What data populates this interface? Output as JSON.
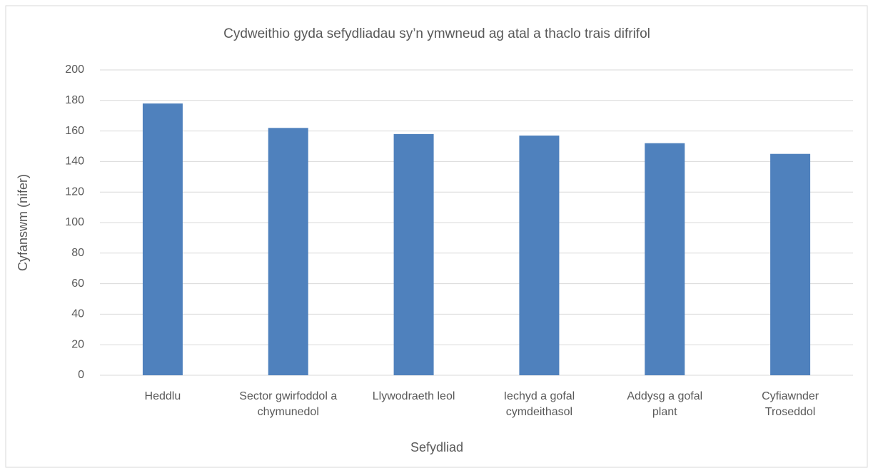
{
  "chart_data": {
    "type": "bar",
    "title": "Cydweithio gyda sefydliadau sy’n ymwneud ag atal a thaclo trais difrifol",
    "x_label": "Sefydliad",
    "y_label": "Cyfanswm (nifer)",
    "categories": [
      "Heddlu",
      "Sector gwirfoddol a chymunedol",
      "Llywodraeth leol",
      "Iechyd a gofal cymdeithasol",
      "Addysg a gofal plant",
      "Cyfiawnder Troseddol"
    ],
    "values": [
      178,
      162,
      158,
      157,
      152,
      145
    ],
    "color": "#4f81bd",
    "ylim": [
      0,
      200
    ],
    "yticks": [
      0,
      20,
      40,
      60,
      80,
      100,
      120,
      140,
      160,
      180,
      200
    ],
    "grid": true
  }
}
